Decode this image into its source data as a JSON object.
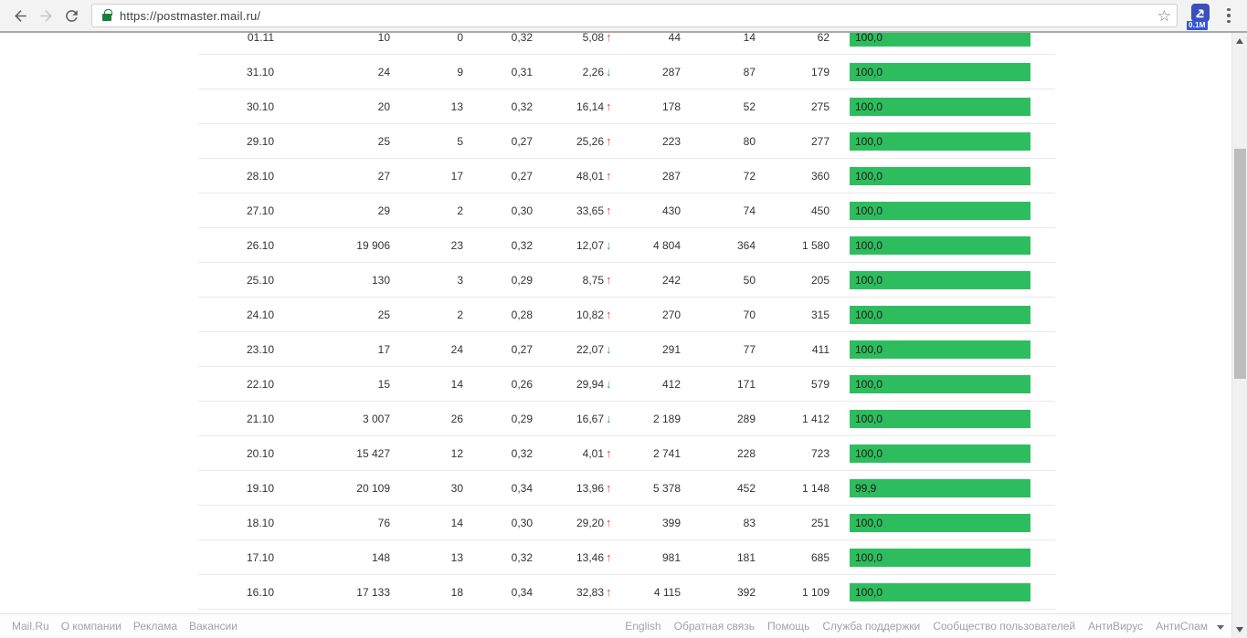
{
  "browser": {
    "url": "https://postmaster.mail.ru/",
    "extension_badge": "0.1M"
  },
  "table": {
    "rows": [
      {
        "date": "01.11",
        "col2": "10",
        "col3": "0",
        "col4": "0,32",
        "delta": "5,08",
        "trend": "up",
        "col6": "44",
        "col7": "14",
        "col8": "62",
        "score": "100,0",
        "score_pct": 100
      },
      {
        "date": "31.10",
        "col2": "24",
        "col3": "9",
        "col4": "0,31",
        "delta": "2,26",
        "trend": "down",
        "col6": "287",
        "col7": "87",
        "col8": "179",
        "score": "100,0",
        "score_pct": 100
      },
      {
        "date": "30.10",
        "col2": "20",
        "col3": "13",
        "col4": "0,32",
        "delta": "16,14",
        "trend": "up",
        "col6": "178",
        "col7": "52",
        "col8": "275",
        "score": "100,0",
        "score_pct": 100
      },
      {
        "date": "29.10",
        "col2": "25",
        "col3": "5",
        "col4": "0,27",
        "delta": "25,26",
        "trend": "up",
        "col6": "223",
        "col7": "80",
        "col8": "277",
        "score": "100,0",
        "score_pct": 100
      },
      {
        "date": "28.10",
        "col2": "27",
        "col3": "17",
        "col4": "0,27",
        "delta": "48,01",
        "trend": "up",
        "col6": "287",
        "col7": "72",
        "col8": "360",
        "score": "100,0",
        "score_pct": 100
      },
      {
        "date": "27.10",
        "col2": "29",
        "col3": "2",
        "col4": "0,30",
        "delta": "33,65",
        "trend": "up",
        "col6": "430",
        "col7": "74",
        "col8": "450",
        "score": "100,0",
        "score_pct": 100
      },
      {
        "date": "26.10",
        "col2": "19 906",
        "col3": "23",
        "col4": "0,32",
        "delta": "12,07",
        "trend": "down",
        "col6": "4 804",
        "col7": "364",
        "col8": "1 580",
        "score": "100,0",
        "score_pct": 100
      },
      {
        "date": "25.10",
        "col2": "130",
        "col3": "3",
        "col4": "0,29",
        "delta": "8,75",
        "trend": "up",
        "col6": "242",
        "col7": "50",
        "col8": "205",
        "score": "100,0",
        "score_pct": 100
      },
      {
        "date": "24.10",
        "col2": "25",
        "col3": "2",
        "col4": "0,28",
        "delta": "10,82",
        "trend": "up",
        "col6": "270",
        "col7": "70",
        "col8": "315",
        "score": "100,0",
        "score_pct": 100
      },
      {
        "date": "23.10",
        "col2": "17",
        "col3": "24",
        "col4": "0,27",
        "delta": "22,07",
        "trend": "down",
        "col6": "291",
        "col7": "77",
        "col8": "411",
        "score": "100,0",
        "score_pct": 100
      },
      {
        "date": "22.10",
        "col2": "15",
        "col3": "14",
        "col4": "0,26",
        "delta": "29,94",
        "trend": "down",
        "col6": "412",
        "col7": "171",
        "col8": "579",
        "score": "100,0",
        "score_pct": 100
      },
      {
        "date": "21.10",
        "col2": "3 007",
        "col3": "26",
        "col4": "0,29",
        "delta": "16,67",
        "trend": "down",
        "col6": "2 189",
        "col7": "289",
        "col8": "1 412",
        "score": "100,0",
        "score_pct": 100
      },
      {
        "date": "20.10",
        "col2": "15 427",
        "col3": "12",
        "col4": "0,32",
        "delta": "4,01",
        "trend": "up",
        "col6": "2 741",
        "col7": "228",
        "col8": "723",
        "score": "100,0",
        "score_pct": 100
      },
      {
        "date": "19.10",
        "col2": "20 109",
        "col3": "30",
        "col4": "0,34",
        "delta": "13,96",
        "trend": "up",
        "col6": "5 378",
        "col7": "452",
        "col8": "1 148",
        "score": "99,9",
        "score_pct": 99.9
      },
      {
        "date": "18.10",
        "col2": "76",
        "col3": "14",
        "col4": "0,30",
        "delta": "29,20",
        "trend": "up",
        "col6": "399",
        "col7": "83",
        "col8": "251",
        "score": "100,0",
        "score_pct": 100
      },
      {
        "date": "17.10",
        "col2": "148",
        "col3": "13",
        "col4": "0,32",
        "delta": "13,46",
        "trend": "up",
        "col6": "981",
        "col7": "181",
        "col8": "685",
        "score": "100,0",
        "score_pct": 100
      },
      {
        "date": "16.10",
        "col2": "17 133",
        "col3": "18",
        "col4": "0,34",
        "delta": "32,83",
        "trend": "up",
        "col6": "4 115",
        "col7": "392",
        "col8": "1 109",
        "score": "100,0",
        "score_pct": 100
      }
    ]
  },
  "footer": {
    "left": [
      {
        "label": "Mail.Ru"
      },
      {
        "label": "О компании"
      },
      {
        "label": "Реклама"
      },
      {
        "label": "Вакансии"
      }
    ],
    "right": [
      {
        "label": "English"
      },
      {
        "label": "Обратная связь"
      },
      {
        "label": "Помощь"
      },
      {
        "label": "Служба поддержки"
      },
      {
        "label": "Сообщество пользователей"
      },
      {
        "label": "АнтиВирус"
      },
      {
        "label": "АнтиСпам"
      }
    ]
  },
  "colors": {
    "bar_green": "#2ebd5e",
    "trend_up_red": "#e0492c",
    "trend_down_green": "#27ae52",
    "lock_green": "#188038",
    "badge_blue": "#3356d8"
  }
}
